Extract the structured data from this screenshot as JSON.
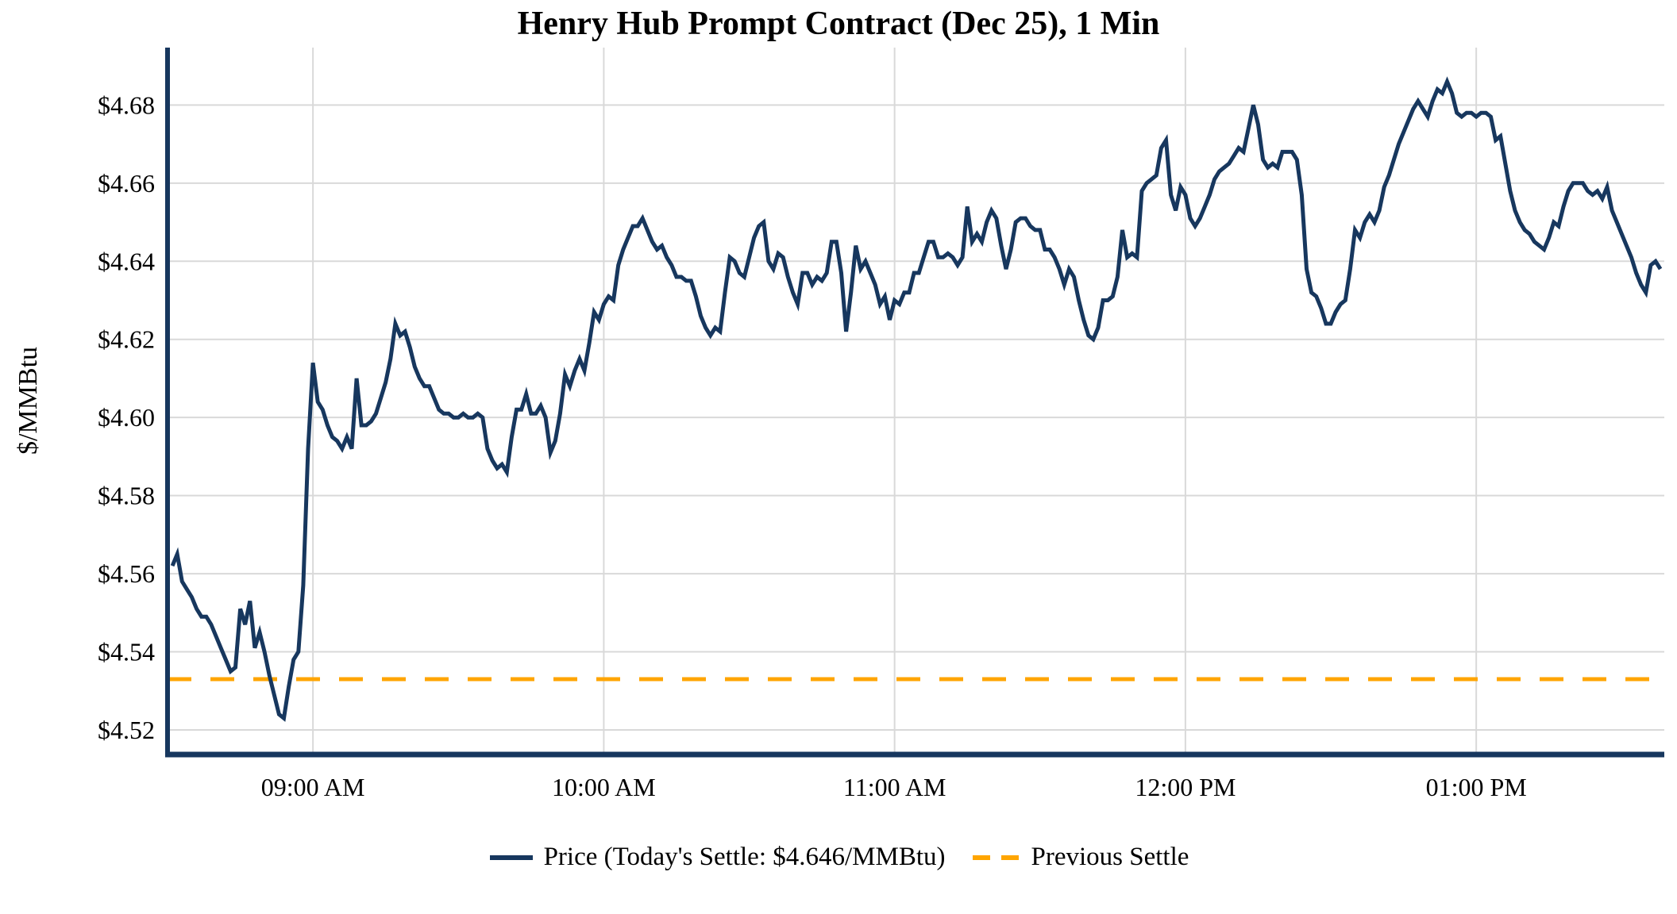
{
  "title": "Henry Hub Prompt Contract (Dec 25), 1 Min",
  "y_axis": {
    "label": "$/MMBtu",
    "tick_labels": [
      "$4.52",
      "$4.54",
      "$4.56",
      "$4.58",
      "$4.60",
      "$4.62",
      "$4.64",
      "$4.66",
      "$4.68"
    ],
    "tick_values": [
      4.52,
      4.54,
      4.56,
      4.58,
      4.6,
      4.62,
      4.64,
      4.66,
      4.68
    ]
  },
  "x_axis": {
    "tick_labels": [
      "09:00 AM",
      "10:00 AM",
      "11:00 AM",
      "12:00 PM",
      "01:00 PM"
    ],
    "tick_minutes_after_0830": [
      30,
      90,
      150,
      210,
      270
    ]
  },
  "legend": {
    "price_label": "Price (Today's Settle: $4.646/MMBtu)",
    "prev_settle_label": "Previous Settle"
  },
  "todays_settle_usd_per_mmbtu": 4.646,
  "previous_settle_usd_per_mmbtu": 4.533,
  "colors": {
    "price_line": "#17375e",
    "prev_settle_line": "#FFA500",
    "grid": "#d9d9d9",
    "axis": "#17375e",
    "text": "#000000",
    "background": "#ffffff"
  },
  "chart_data": {
    "type": "line",
    "title": "Henry Hub Prompt Contract (Dec 25), 1 Min",
    "xlabel": "",
    "ylabel": "$/MMBtu",
    "legend_position": "bottom-center",
    "grid": true,
    "x_start_time": "08:31 AM",
    "x_end_time": "01:38 PM",
    "x_interval_minutes": 1,
    "x_domain_minutes_after_0830": [
      0,
      308.8
    ],
    "ylim": [
      4.5137,
      4.6947
    ],
    "series": [
      {
        "name": "Price (Today's Settle: $4.646/MMBtu)",
        "style": "solid",
        "values": [
          4.562,
          4.565,
          4.558,
          4.556,
          4.554,
          4.551,
          4.549,
          4.549,
          4.547,
          4.544,
          4.541,
          4.538,
          4.535,
          4.536,
          4.551,
          4.547,
          4.553,
          4.541,
          4.545,
          4.54,
          4.534,
          4.529,
          4.524,
          4.523,
          4.531,
          4.538,
          4.54,
          4.557,
          4.592,
          4.614,
          4.604,
          4.602,
          4.598,
          4.595,
          4.594,
          4.592,
          4.595,
          4.592,
          4.61,
          4.598,
          4.598,
          4.599,
          4.601,
          4.605,
          4.609,
          4.615,
          4.624,
          4.621,
          4.622,
          4.618,
          4.613,
          4.61,
          4.608,
          4.608,
          4.605,
          4.602,
          4.601,
          4.601,
          4.6,
          4.6,
          4.601,
          4.6,
          4.6,
          4.601,
          4.6,
          4.592,
          4.589,
          4.587,
          4.588,
          4.586,
          4.595,
          4.602,
          4.602,
          4.606,
          4.601,
          4.601,
          4.603,
          4.6,
          4.591,
          4.594,
          4.601,
          4.611,
          4.608,
          4.612,
          4.615,
          4.612,
          4.619,
          4.627,
          4.625,
          4.629,
          4.631,
          4.63,
          4.639,
          4.643,
          4.646,
          4.649,
          4.649,
          4.651,
          4.648,
          4.645,
          4.643,
          4.644,
          4.641,
          4.639,
          4.636,
          4.636,
          4.635,
          4.635,
          4.631,
          4.626,
          4.623,
          4.621,
          4.623,
          4.622,
          4.632,
          4.641,
          4.64,
          4.637,
          4.636,
          4.641,
          4.646,
          4.649,
          4.65,
          4.64,
          4.638,
          4.642,
          4.641,
          4.636,
          4.632,
          4.629,
          4.637,
          4.637,
          4.634,
          4.636,
          4.635,
          4.637,
          4.645,
          4.645,
          4.637,
          4.622,
          4.632,
          4.644,
          4.638,
          4.64,
          4.637,
          4.634,
          4.629,
          4.631,
          4.625,
          4.63,
          4.629,
          4.632,
          4.632,
          4.637,
          4.637,
          4.641,
          4.645,
          4.645,
          4.641,
          4.641,
          4.642,
          4.641,
          4.639,
          4.641,
          4.654,
          4.645,
          4.647,
          4.645,
          4.65,
          4.653,
          4.651,
          4.644,
          4.638,
          4.643,
          4.65,
          4.651,
          4.651,
          4.649,
          4.648,
          4.648,
          4.643,
          4.643,
          4.641,
          4.638,
          4.634,
          4.638,
          4.636,
          4.63,
          4.625,
          4.621,
          4.62,
          4.623,
          4.63,
          4.63,
          4.631,
          4.636,
          4.648,
          4.641,
          4.642,
          4.641,
          4.658,
          4.66,
          4.661,
          4.662,
          4.669,
          4.671,
          4.657,
          4.653,
          4.659,
          4.657,
          4.651,
          4.649,
          4.651,
          4.654,
          4.657,
          4.661,
          4.663,
          4.664,
          4.665,
          4.667,
          4.669,
          4.668,
          4.674,
          4.68,
          4.675,
          4.666,
          4.664,
          4.665,
          4.664,
          4.668,
          4.668,
          4.668,
          4.666,
          4.657,
          4.638,
          4.632,
          4.631,
          4.628,
          4.624,
          4.624,
          4.627,
          4.629,
          4.63,
          4.638,
          4.648,
          4.646,
          4.65,
          4.652,
          4.65,
          4.653,
          4.659,
          4.662,
          4.666,
          4.67,
          4.673,
          4.676,
          4.679,
          4.681,
          4.679,
          4.677,
          4.681,
          4.684,
          4.683,
          4.686,
          4.683,
          4.678,
          4.677,
          4.678,
          4.678,
          4.677,
          4.678,
          4.678,
          4.677,
          4.671,
          4.672,
          4.665,
          4.658,
          4.653,
          4.65,
          4.648,
          4.647,
          4.645,
          4.644,
          4.643,
          4.646,
          4.65,
          4.649,
          4.654,
          4.658,
          4.66,
          4.66,
          4.66,
          4.658,
          4.657,
          4.658,
          4.656,
          4.659,
          4.653,
          4.65,
          4.647,
          4.644,
          4.641,
          4.637,
          4.634,
          4.632,
          4.639,
          4.64,
          4.638
        ]
      },
      {
        "name": "Previous Settle",
        "style": "dashed",
        "constant_value": 4.533
      }
    ]
  }
}
